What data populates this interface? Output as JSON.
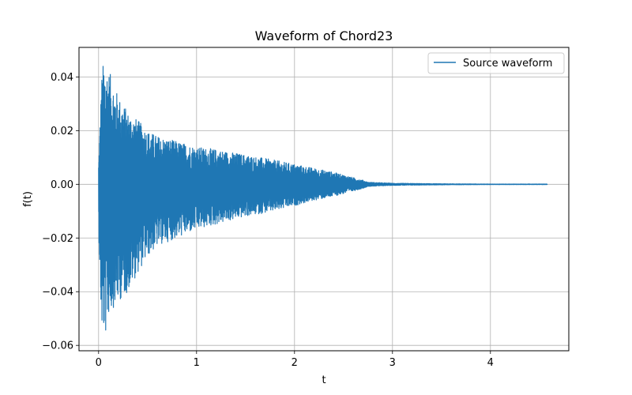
{
  "chart_data": {
    "type": "line",
    "title": "Waveform of Chord23",
    "xlabel": "t",
    "ylabel": "f(t)",
    "xlim": [
      -0.2,
      4.8
    ],
    "ylim": [
      -0.062,
      0.051
    ],
    "xticks": [
      0,
      1,
      2,
      3,
      4
    ],
    "xtick_labels": [
      "0",
      "1",
      "2",
      "3",
      "4"
    ],
    "yticks": [
      -0.06,
      -0.04,
      -0.02,
      0.0,
      0.02,
      0.04
    ],
    "ytick_labels": [
      "−0.06",
      "−0.04",
      "−0.02",
      "0.00",
      "0.02",
      "0.04"
    ],
    "grid": true,
    "legend_position": "top-right",
    "series": [
      {
        "name": "Source waveform",
        "color": "#1f77b4",
        "t_end": 4.58,
        "upper_envelope": {
          "t": [
            0,
            0.03,
            0.05,
            0.1,
            0.15,
            0.2,
            0.3,
            0.4,
            0.5,
            0.6,
            0.8,
            1.0,
            1.2,
            1.5,
            1.8,
            2.0,
            2.2,
            2.4,
            2.6,
            2.7,
            2.75,
            3.0,
            3.5,
            4.0,
            4.58
          ],
          "values": [
            0.008,
            0.04,
            0.046,
            0.043,
            0.038,
            0.033,
            0.027,
            0.024,
            0.02,
            0.018,
            0.016,
            0.014,
            0.013,
            0.011,
            0.009,
            0.0075,
            0.006,
            0.0045,
            0.0025,
            0.0015,
            0.0008,
            0.0004,
            0.0002,
            0.0001,
            0.0001
          ]
        },
        "lower_envelope": {
          "t": [
            0,
            0.03,
            0.07,
            0.1,
            0.15,
            0.2,
            0.3,
            0.4,
            0.5,
            0.6,
            0.8,
            1.0,
            1.2,
            1.5,
            1.8,
            2.0,
            2.2,
            2.4,
            2.6,
            2.7,
            2.75,
            3.0,
            3.5,
            4.0,
            4.58
          ],
          "values": [
            -0.017,
            -0.055,
            -0.057,
            -0.049,
            -0.046,
            -0.044,
            -0.04,
            -0.033,
            -0.027,
            -0.023,
            -0.02,
            -0.017,
            -0.015,
            -0.012,
            -0.01,
            -0.008,
            -0.006,
            -0.0045,
            -0.0025,
            -0.0015,
            -0.0008,
            -0.0004,
            -0.0002,
            -0.0001,
            -0.0001
          ]
        }
      }
    ]
  }
}
